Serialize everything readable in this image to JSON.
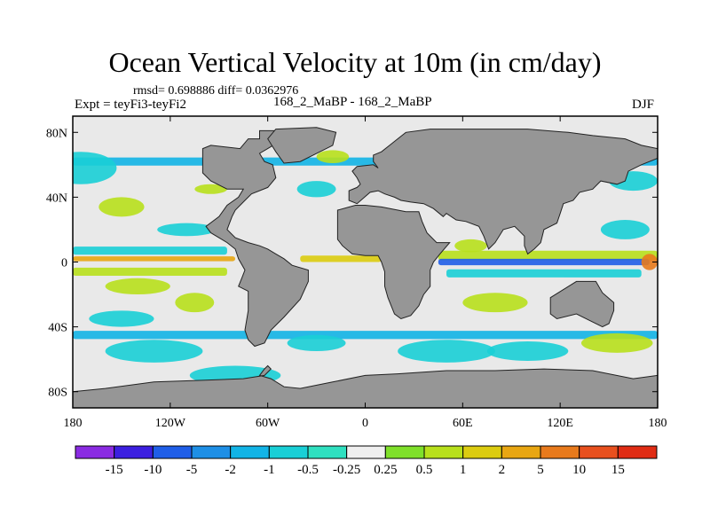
{
  "chart_data": {
    "type": "heatmap",
    "title": "Ocean Vertical Velocity at 10m (in cm/day)",
    "stats_label": "rmsd= 0.698886 diff= 0.0362976",
    "experiment_label": "Expt = teyFi3-teyFi2",
    "case_label": "168_2_MaBP - 168_2_MaBP",
    "season_label": "DJF",
    "x_axis": {
      "range": [
        -180,
        180
      ],
      "ticks": [
        {
          "value": -180,
          "label": "180"
        },
        {
          "value": -120,
          "label": "120W"
        },
        {
          "value": -60,
          "label": "60W"
        },
        {
          "value": 0,
          "label": "0"
        },
        {
          "value": 60,
          "label": "60E"
        },
        {
          "value": 120,
          "label": "120E"
        },
        {
          "value": 180,
          "label": "180"
        }
      ]
    },
    "y_axis": {
      "range": [
        -90,
        90
      ],
      "ticks": [
        {
          "value": 80,
          "label": "80N"
        },
        {
          "value": 40,
          "label": "40N"
        },
        {
          "value": 0,
          "label": "0"
        },
        {
          "value": -40,
          "label": "40S"
        },
        {
          "value": -80,
          "label": "80S"
        }
      ]
    },
    "colorbar": {
      "labels": [
        "-15",
        "-10",
        "-5",
        "-2",
        "-1",
        "-0.5",
        "-0.25",
        "0.25",
        "0.5",
        "1",
        "2",
        "5",
        "10",
        "15"
      ],
      "colors": [
        "#8a2be2",
        "#3c1fe0",
        "#1f5ee8",
        "#1e8fe6",
        "#12b4e6",
        "#19cfd6",
        "#2fe0c0",
        "#efefef",
        "#7fe02a",
        "#b8e01c",
        "#dccc10",
        "#e8a612",
        "#e87a1c",
        "#e8501e",
        "#e02c14"
      ]
    },
    "land_color": "#969696",
    "background_color": "#e9e9e9",
    "continents": [
      {
        "name": "Americas",
        "outline": [
          [
            -47,
            81
          ],
          [
            -65,
            81
          ],
          [
            -65,
            76
          ],
          [
            -72,
            76
          ],
          [
            -77,
            70
          ],
          [
            -95,
            72
          ],
          [
            -100,
            70
          ],
          [
            -100,
            55
          ],
          [
            -95,
            50
          ],
          [
            -85,
            45
          ],
          [
            -75,
            45
          ],
          [
            -78,
            40
          ],
          [
            -85,
            35
          ],
          [
            -90,
            28
          ],
          [
            -98,
            22
          ],
          [
            -95,
            18
          ],
          [
            -85,
            12
          ],
          [
            -80,
            8
          ],
          [
            -78,
            2
          ],
          [
            -74,
            -5
          ],
          [
            -76,
            -10
          ],
          [
            -78,
            -15
          ],
          [
            -72,
            -18
          ],
          [
            -72,
            -30
          ],
          [
            -74,
            -42
          ],
          [
            -72,
            -48
          ],
          [
            -68,
            -52
          ],
          [
            -62,
            -50
          ],
          [
            -58,
            -42
          ],
          [
            -50,
            -34
          ],
          [
            -40,
            -23
          ],
          [
            -35,
            -12
          ],
          [
            -35,
            -5
          ],
          [
            -45,
            -2
          ],
          [
            -50,
            2
          ],
          [
            -55,
            5
          ],
          [
            -60,
            8
          ],
          [
            -65,
            10
          ],
          [
            -72,
            12
          ],
          [
            -80,
            15
          ],
          [
            -85,
            20
          ],
          [
            -82,
            28
          ],
          [
            -80,
            32
          ],
          [
            -74,
            38
          ],
          [
            -70,
            42
          ],
          [
            -60,
            46
          ],
          [
            -55,
            52
          ],
          [
            -57,
            60
          ],
          [
            -62,
            62
          ],
          [
            -65,
            67
          ],
          [
            -60,
            70
          ],
          [
            -55,
            73
          ],
          [
            -50,
            78
          ]
        ]
      },
      {
        "name": "Eurasia",
        "outline": [
          [
            -5,
            36
          ],
          [
            -10,
            38
          ],
          [
            -10,
            44
          ],
          [
            -5,
            46
          ],
          [
            -3,
            48
          ],
          [
            -5,
            52
          ],
          [
            -8,
            56
          ],
          [
            -5,
            59
          ],
          [
            5,
            60
          ],
          [
            8,
            58
          ],
          [
            5,
            62
          ],
          [
            5,
            66
          ],
          [
            10,
            68
          ],
          [
            15,
            72
          ],
          [
            20,
            76
          ],
          [
            25,
            80
          ],
          [
            40,
            82
          ],
          [
            55,
            82
          ],
          [
            80,
            82
          ],
          [
            100,
            82
          ],
          [
            125,
            80
          ],
          [
            140,
            78
          ],
          [
            160,
            76
          ],
          [
            170,
            72
          ],
          [
            180,
            70
          ],
          [
            180,
            64
          ],
          [
            170,
            60
          ],
          [
            162,
            56
          ],
          [
            160,
            50
          ],
          [
            155,
            48
          ],
          [
            145,
            50
          ],
          [
            140,
            45
          ],
          [
            132,
            43
          ],
          [
            128,
            38
          ],
          [
            122,
            36
          ],
          [
            120,
            30
          ],
          [
            118,
            24
          ],
          [
            110,
            20
          ],
          [
            108,
            12
          ],
          [
            104,
            8
          ],
          [
            100,
            5
          ],
          [
            98,
            10
          ],
          [
            98,
            16
          ],
          [
            92,
            22
          ],
          [
            85,
            20
          ],
          [
            80,
            12
          ],
          [
            76,
            8
          ],
          [
            73,
            16
          ],
          [
            70,
            22
          ],
          [
            62,
            25
          ],
          [
            56,
            26
          ],
          [
            50,
            30
          ],
          [
            48,
            28
          ],
          [
            42,
            33
          ],
          [
            36,
            36
          ],
          [
            28,
            37
          ],
          [
            22,
            38
          ],
          [
            18,
            40
          ],
          [
            12,
            42
          ],
          [
            8,
            44
          ],
          [
            3,
            43
          ]
        ]
      },
      {
        "name": "Africa",
        "outline": [
          [
            -17,
            32
          ],
          [
            -17,
            14
          ],
          [
            -14,
            10
          ],
          [
            -8,
            5
          ],
          [
            0,
            4
          ],
          [
            8,
            4
          ],
          [
            10,
            0
          ],
          [
            12,
            -6
          ],
          [
            12,
            -15
          ],
          [
            14,
            -22
          ],
          [
            18,
            -32
          ],
          [
            22,
            -35
          ],
          [
            28,
            -33
          ],
          [
            33,
            -27
          ],
          [
            36,
            -20
          ],
          [
            40,
            -15
          ],
          [
            40,
            -5
          ],
          [
            42,
            0
          ],
          [
            46,
            5
          ],
          [
            52,
            12
          ],
          [
            44,
            12
          ],
          [
            38,
            18
          ],
          [
            35,
            25
          ],
          [
            33,
            31
          ],
          [
            25,
            31
          ],
          [
            10,
            34
          ],
          [
            0,
            35
          ],
          [
            -6,
            35
          ]
        ]
      },
      {
        "name": "Australia",
        "outline": [
          [
            114,
            -22
          ],
          [
            114,
            -32
          ],
          [
            118,
            -35
          ],
          [
            130,
            -32
          ],
          [
            138,
            -36
          ],
          [
            146,
            -40
          ],
          [
            150,
            -38
          ],
          [
            153,
            -30
          ],
          [
            153,
            -25
          ],
          [
            146,
            -19
          ],
          [
            142,
            -12
          ],
          [
            136,
            -12
          ],
          [
            130,
            -12
          ],
          [
            122,
            -17
          ]
        ]
      },
      {
        "name": "Antarctica",
        "outline": [
          [
            -60,
            -64
          ],
          [
            -58,
            -66
          ],
          [
            -62,
            -70
          ],
          [
            -75,
            -72
          ],
          [
            -100,
            -73
          ],
          [
            -130,
            -74
          ],
          [
            -160,
            -78
          ],
          [
            -180,
            -80
          ],
          [
            -180,
            -90
          ],
          [
            180,
            -90
          ],
          [
            180,
            -70
          ],
          [
            165,
            -72
          ],
          [
            140,
            -67
          ],
          [
            110,
            -66
          ],
          [
            80,
            -67
          ],
          [
            50,
            -67
          ],
          [
            20,
            -69
          ],
          [
            0,
            -70
          ],
          [
            -20,
            -74
          ],
          [
            -40,
            -78
          ],
          [
            -50,
            -77
          ],
          [
            -58,
            -72
          ],
          [
            -65,
            -70
          ],
          [
            -62,
            -66
          ]
        ]
      },
      {
        "name": "Greenland",
        "outline": [
          [
            -55,
            82
          ],
          [
            -30,
            83
          ],
          [
            -18,
            80
          ],
          [
            -20,
            72
          ],
          [
            -40,
            62
          ],
          [
            -50,
            61
          ],
          [
            -55,
            68
          ],
          [
            -60,
            76
          ]
        ]
      }
    ],
    "anomaly_blobs": [
      {
        "lon": -150,
        "lat": 34,
        "rx": 14,
        "ry": 6,
        "level": 9
      },
      {
        "lon": -175,
        "lat": 58,
        "rx": 22,
        "ry": 10,
        "level": 5
      },
      {
        "lon": -110,
        "lat": 20,
        "rx": 18,
        "ry": 4,
        "level": 5
      },
      {
        "lon": -130,
        "lat": -55,
        "rx": 30,
        "ry": 7,
        "level": 5
      },
      {
        "lon": -150,
        "lat": -35,
        "rx": 20,
        "ry": 5,
        "level": 5
      },
      {
        "lon": -105,
        "lat": -25,
        "rx": 12,
        "ry": 6,
        "level": 9
      },
      {
        "lon": -140,
        "lat": -15,
        "rx": 20,
        "ry": 5,
        "level": 9
      },
      {
        "lon": -80,
        "lat": -70,
        "rx": 28,
        "ry": 6,
        "level": 5
      },
      {
        "lon": -30,
        "lat": -50,
        "rx": 18,
        "ry": 5,
        "level": 5
      },
      {
        "lon": 50,
        "lat": -55,
        "rx": 30,
        "ry": 7,
        "level": 5
      },
      {
        "lon": 100,
        "lat": -55,
        "rx": 25,
        "ry": 6,
        "level": 5
      },
      {
        "lon": 155,
        "lat": -50,
        "rx": 22,
        "ry": 6,
        "level": 9
      },
      {
        "lon": 80,
        "lat": -25,
        "rx": 20,
        "ry": 6,
        "level": 9
      },
      {
        "lon": 160,
        "lat": 20,
        "rx": 15,
        "ry": 6,
        "level": 5
      },
      {
        "lon": 165,
        "lat": 50,
        "rx": 15,
        "ry": 6,
        "level": 5
      },
      {
        "lon": -30,
        "lat": 45,
        "rx": 12,
        "ry": 5,
        "level": 5
      },
      {
        "lon": -20,
        "lat": 65,
        "rx": 10,
        "ry": 4,
        "level": 9
      },
      {
        "lon": 65,
        "lat": 10,
        "rx": 10,
        "ry": 4,
        "level": 9
      },
      {
        "lon": 175,
        "lat": 0,
        "rx": 5,
        "ry": 5,
        "level": 12
      },
      {
        "lon": -95,
        "lat": 45,
        "rx": 10,
        "ry": 3,
        "level": 9
      }
    ],
    "anomaly_bands": [
      {
        "lon0": -180,
        "lon1": -85,
        "lat": 7,
        "half_width": 2.5,
        "level": 5
      },
      {
        "lon0": -180,
        "lon1": -80,
        "lat": 2,
        "half_width": 1.5,
        "level": 11
      },
      {
        "lon0": -180,
        "lon1": -85,
        "lat": -6,
        "half_width": 2.5,
        "level": 9
      },
      {
        "lon0": 45,
        "lon1": 180,
        "lat": 4,
        "half_width": 3.0,
        "level": 9
      },
      {
        "lon0": 45,
        "lon1": 175,
        "lat": 0,
        "half_width": 2.0,
        "level": 2
      },
      {
        "lon0": 50,
        "lon1": 170,
        "lat": -7,
        "half_width": 2.5,
        "level": 5
      },
      {
        "lon0": -40,
        "lon1": 10,
        "lat": 2,
        "half_width": 2.0,
        "level": 10
      },
      {
        "lon0": -180,
        "lon1": 180,
        "lat": -45,
        "half_width": 2.5,
        "level": 4
      },
      {
        "lon0": -180,
        "lon1": 180,
        "lat": 62,
        "half_width": 2.5,
        "level": 4
      }
    ]
  }
}
